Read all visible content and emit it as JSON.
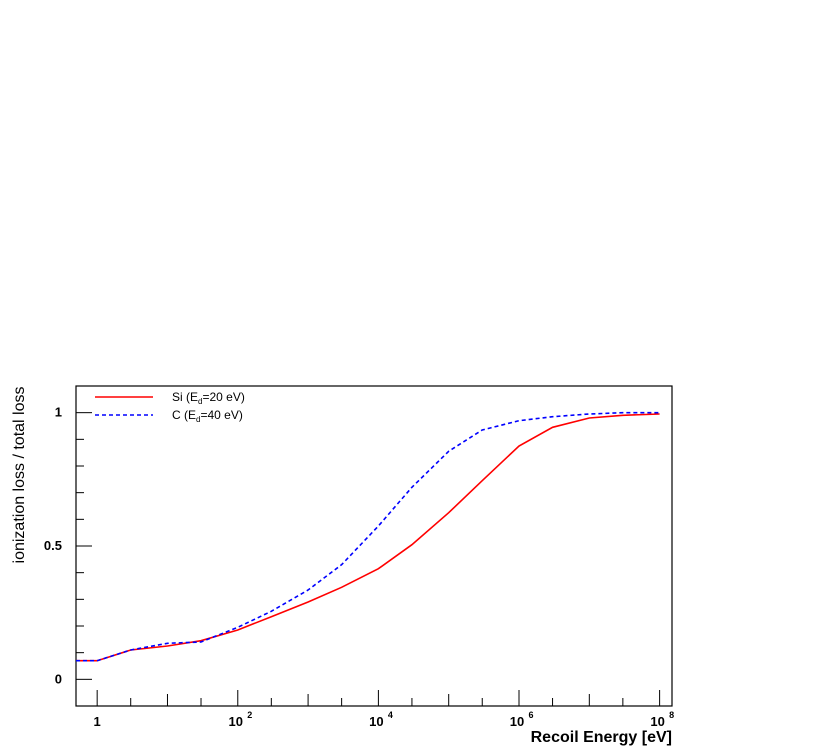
{
  "chart_data": {
    "type": "line",
    "xlabel": "Recoil Energy [eV]",
    "ylabel": "ionization loss / total loss",
    "x_scale": "log",
    "xlim": [
      0.5,
      150000000
    ],
    "ylim": [
      -0.1,
      1.1
    ],
    "grid": false,
    "legend_position": "top-left",
    "x_ticks": [
      {
        "value": 1,
        "base": "1",
        "exp": ""
      },
      {
        "value": 100,
        "base": "10",
        "exp": "2"
      },
      {
        "value": 10000,
        "base": "10",
        "exp": "4"
      },
      {
        "value": 1000000,
        "base": "10",
        "exp": "6"
      },
      {
        "value": 100000000,
        "base": "10",
        "exp": "8"
      }
    ],
    "y_ticks": [
      {
        "value": 0,
        "label": "0"
      },
      {
        "value": 0.5,
        "label": "0.5"
      },
      {
        "value": 1,
        "label": "1"
      }
    ],
    "series": [
      {
        "name": "Si (Ed=20 eV)",
        "legend_main": "Si (E",
        "legend_sub": "d",
        "legend_rest": "=20 eV)",
        "color": "#ff0000",
        "dash": "solid",
        "points": [
          [
            0.5,
            0.07
          ],
          [
            1,
            0.07
          ],
          [
            3,
            0.11
          ],
          [
            10,
            0.125
          ],
          [
            30,
            0.145
          ],
          [
            100,
            0.185
          ],
          [
            300,
            0.235
          ],
          [
            1000,
            0.29
          ],
          [
            3000,
            0.345
          ],
          [
            10000,
            0.415
          ],
          [
            30000,
            0.505
          ],
          [
            100000,
            0.625
          ],
          [
            300000,
            0.745
          ],
          [
            1000000,
            0.875
          ],
          [
            3000000,
            0.945
          ],
          [
            10000000,
            0.98
          ],
          [
            30000000,
            0.99
          ],
          [
            100000000,
            0.995
          ]
        ]
      },
      {
        "name": "C (Ed=40 eV)",
        "legend_main": "C (E",
        "legend_sub": "d",
        "legend_rest": "=40 eV)",
        "color": "#0000ff",
        "dash": "dashed",
        "points": [
          [
            0.5,
            0.07
          ],
          [
            1,
            0.07
          ],
          [
            3,
            0.11
          ],
          [
            10,
            0.135
          ],
          [
            30,
            0.14
          ],
          [
            100,
            0.195
          ],
          [
            300,
            0.255
          ],
          [
            1000,
            0.335
          ],
          [
            3000,
            0.43
          ],
          [
            10000,
            0.575
          ],
          [
            30000,
            0.72
          ],
          [
            100000,
            0.855
          ],
          [
            300000,
            0.935
          ],
          [
            1000000,
            0.97
          ],
          [
            3000000,
            0.985
          ],
          [
            10000000,
            0.995
          ],
          [
            30000000,
            1.0
          ],
          [
            100000000,
            1.0
          ]
        ]
      }
    ]
  }
}
